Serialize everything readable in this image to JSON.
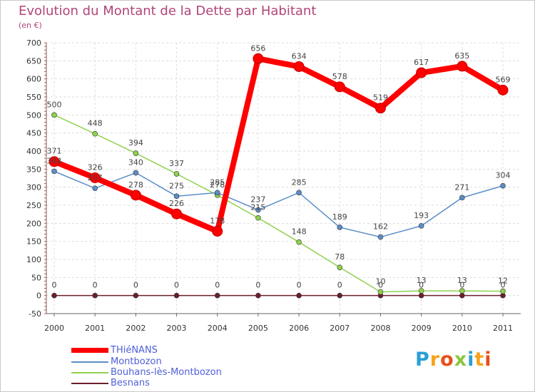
{
  "title": "Evolution du Montant de la Dette par Habitant",
  "subtitle": "(en €)",
  "brand": "Proxiti",
  "chart_data": {
    "type": "line",
    "title": "Evolution du Montant de la Dette par Habitant",
    "ylabel": "(en €)",
    "x": [
      "2000",
      "2001",
      "2002",
      "2003",
      "2004",
      "2005",
      "2006",
      "2007",
      "2008",
      "2009",
      "2010",
      "2011"
    ],
    "ylim": [
      -50,
      700
    ],
    "yticks": [
      -50,
      0,
      50,
      100,
      150,
      200,
      250,
      300,
      350,
      400,
      450,
      500,
      550,
      600,
      650,
      700
    ],
    "grid": true,
    "legend_position": "bottom-left",
    "series": [
      {
        "name": "THiéNANS",
        "color": "#ff0000",
        "values": [
          371,
          326,
          278,
          226,
          178,
          656,
          634,
          578,
          519,
          617,
          635,
          569
        ]
      },
      {
        "name": "Montbozon",
        "color": "#5b8ec7",
        "values": [
          344,
          297,
          340,
          275,
          285,
          237,
          285,
          189,
          162,
          193,
          271,
          304
        ]
      },
      {
        "name": "Bouhans-lès-Montbozon",
        "color": "#8fd14f",
        "values": [
          500,
          448,
          394,
          337,
          278,
          215,
          148,
          78,
          10,
          13,
          13,
          12
        ]
      },
      {
        "name": "Besnans",
        "color": "#6b1f2a",
        "values": [
          0,
          0,
          0,
          0,
          0,
          0,
          0,
          0,
          0,
          0,
          0,
          0
        ]
      }
    ]
  }
}
